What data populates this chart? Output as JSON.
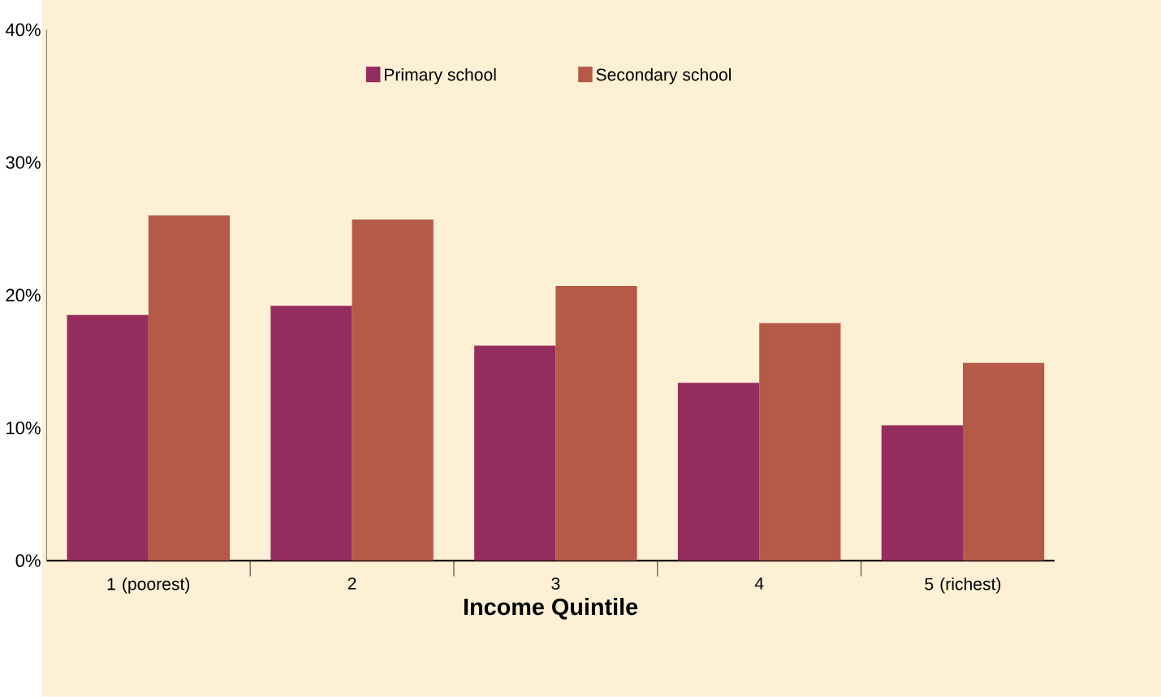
{
  "chart_data": {
    "type": "bar",
    "xlabel": "Income Quintile",
    "categories": [
      "1 (poorest)",
      "2",
      "3",
      "4",
      "5 (richest)"
    ],
    "series": [
      {
        "name": "Primary school",
        "color": "#942c5e",
        "values": [
          18.5,
          19.2,
          16.2,
          13.4,
          10.2
        ]
      },
      {
        "name": "Secondary school",
        "color": "#b55a48",
        "values": [
          26.0,
          25.7,
          20.7,
          17.9,
          14.9
        ]
      }
    ],
    "ylim": [
      0,
      40
    ],
    "yticks": [
      {
        "value": 0,
        "label": "0%"
      },
      {
        "value": 10,
        "label": "10%"
      },
      {
        "value": 20,
        "label": "20%"
      },
      {
        "value": 30,
        "label": "30%"
      },
      {
        "value": 40,
        "label": "40%"
      }
    ],
    "grid": false,
    "legend": "top"
  }
}
